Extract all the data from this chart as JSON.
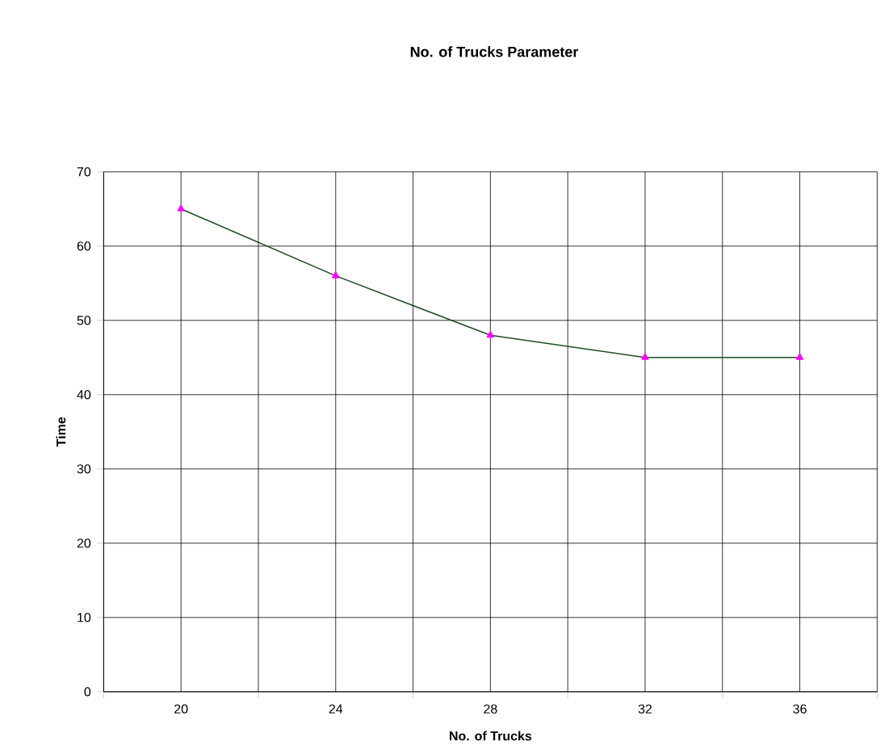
{
  "chart_data": {
    "type": "line",
    "title": "No. of Trucks Parameter",
    "xlabel": "No. of Trucks",
    "ylabel": "Time",
    "categories": [
      "20",
      "24",
      "28",
      "32",
      "36"
    ],
    "series": [
      {
        "color": "#1f4d1f",
        "values": [
          65,
          56,
          48,
          45,
          45
        ]
      }
    ],
    "ylim": [
      0,
      70
    ],
    "yticks": [
      0,
      10,
      20,
      30,
      40,
      50,
      60,
      70
    ],
    "grid": true,
    "marker": "triangle"
  }
}
